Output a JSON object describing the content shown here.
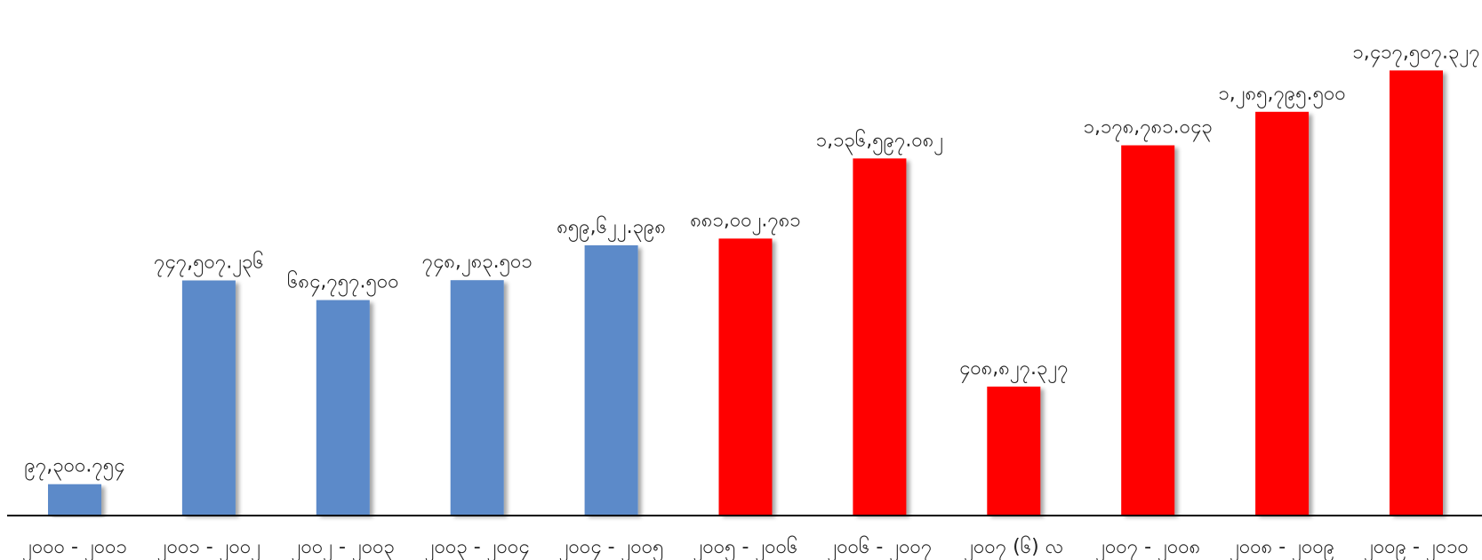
{
  "chart_data": {
    "type": "bar",
    "title": "",
    "xlabel": "",
    "ylabel": "",
    "ylim": [
      0,
      1600000
    ],
    "grid": false,
    "legend": "none",
    "categories": [
      "၂၀၀၀ - ၂၀၀၁",
      "၂၀၀၁ - ၂၀၀၂",
      "၂၀၀၂ - ၂၀၀၃",
      "၂၀၀၃ - ၂၀၀၄",
      "၂၀၀၄ - ၂၀၀၅",
      "၂၀၀၅ - ၂၀၀၆",
      "၂၀၀၆ - ၂၀၀၇",
      "၂၀၀၇ (၆) လ",
      "၂၀၀၇ - ၂၀၀၈",
      "၂၀၀၈ - ၂၀၀၉",
      "၂၀၀၉ - ၂၀၁၀"
    ],
    "values": [
      97300.754,
      747507.236,
      684757.5,
      748283.501,
      859622.398,
      881002.781,
      1136597.082,
      408827.327,
      1178781.043,
      1285795.5,
      1417507.327
    ],
    "value_labels": [
      "၉၇,၃၀၀.၇၅၄",
      "၇၄၇,၅၀၇.၂၃၆",
      "၆၈၄,၇၅၇.၅၀၀",
      "၇၄၈,၂၈၃.၅၀၁",
      "၈၅၉,၆၂၂.၃၉၈",
      "၈၈၁,၀၀၂.၇၈၁",
      "၁,၁၃၆,၅၉၇.၀၈၂",
      "၄၀၈,၈၂၇.၃၂၇",
      "၁,၁၇၈,၇၈၁.၀၄၃",
      "၁,၂၈၅,၇၉၅.၅၀၀",
      "၁,၄၁၇,၅၀၇.၃၂၇"
    ],
    "bar_colors": [
      "#5b8ac9",
      "#5b8ac9",
      "#5b8ac9",
      "#5b8ac9",
      "#5b8ac9",
      "#ff0000",
      "#ff0000",
      "#ff0000",
      "#ff0000",
      "#ff0000",
      "#ff0000"
    ]
  }
}
